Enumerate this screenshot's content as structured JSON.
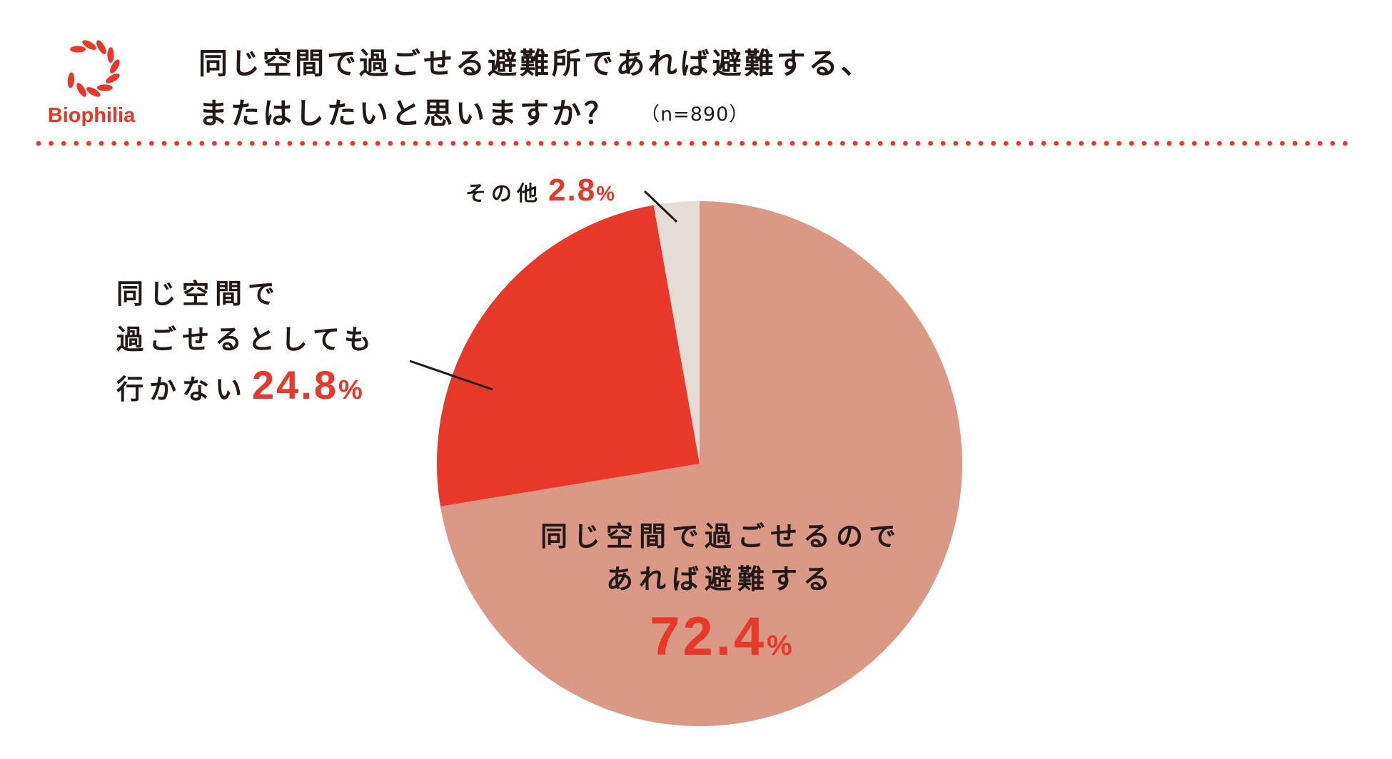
{
  "brand": {
    "logo_text": "Biophilia",
    "logo_icon": "laurel-wreath-icon",
    "accent_color": "#e8382a"
  },
  "title": {
    "line1": "同じ空間で過ごせる避難所であれば避難する、",
    "line2": "またはしたいと思いますか？",
    "sample_size": "（n=890）"
  },
  "chart_data": {
    "type": "pie",
    "title": "同じ空間で過ごせる避難所であれば避難する、またはしたいと思いますか？",
    "start_angle_deg": 0,
    "direction": "clockwise",
    "slices": [
      {
        "label_lines": [
          "同じ空間で過ごせるので",
          "あれば避難する"
        ],
        "value": 72.4,
        "value_label": "72.4",
        "unit": "%",
        "color": "#d99985"
      },
      {
        "label_lines": [
          "同じ空間で",
          "過ごせるとしても",
          "行かない"
        ],
        "value": 24.8,
        "value_label": "24.8",
        "unit": "%",
        "color": "#e8382a"
      },
      {
        "label_lines": [
          "その他"
        ],
        "value": 2.8,
        "value_label": "2.8",
        "unit": "%",
        "color": "#e5dcd6"
      }
    ]
  }
}
